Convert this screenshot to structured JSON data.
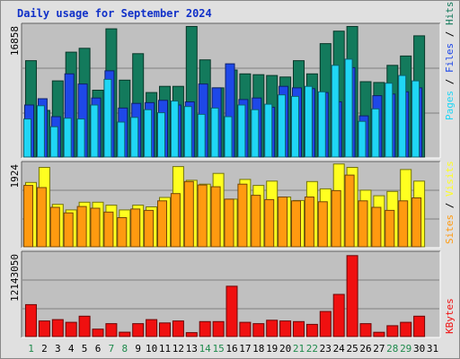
{
  "title": "Daily usage for September 2024",
  "colors": {
    "hits": "#137a5c",
    "files": "#1e48e8",
    "pages": "#20d6f5",
    "visits": "#ffff20",
    "sites": "#ff9a10",
    "kbytes": "#f01010",
    "weekend_label": "#1e8a4c",
    "weekday_label": "#000000"
  },
  "chart_data": [
    {
      "type": "bar",
      "name": "hits-files-pages",
      "categories": [
        "1",
        "2",
        "3",
        "4",
        "5",
        "6",
        "7",
        "8",
        "9",
        "10",
        "11",
        "12",
        "13",
        "14",
        "15",
        "16",
        "17",
        "18",
        "19",
        "20",
        "21",
        "22",
        "23",
        "24",
        "25",
        "26",
        "27",
        "28",
        "29",
        "30",
        "31"
      ],
      "weekend_days": [
        "1",
        "7",
        "8",
        "14",
        "15",
        "21",
        "22",
        "28",
        "29"
      ],
      "ymax_label": "16858",
      "ylim": [
        0,
        16858
      ],
      "series": [
        {
          "name": "Hits",
          "values": [
            12400,
            6000,
            9800,
            13500,
            14000,
            8600,
            16500,
            9900,
            13300,
            8300,
            9100,
            9100,
            16800,
            12500,
            8900,
            11200,
            10700,
            10600,
            10500,
            10300,
            12400,
            10700,
            14600,
            16200,
            16800,
            9700,
            9600,
            11800,
            13000,
            15600,
            0
          ]
        },
        {
          "name": "Files",
          "values": [
            6700,
            7500,
            5200,
            10700,
            9400,
            7600,
            11100,
            6300,
            6900,
            7000,
            7300,
            6700,
            7100,
            9400,
            8900,
            12000,
            7400,
            7600,
            6400,
            9100,
            8900,
            8800,
            8300,
            7100,
            11500,
            5300,
            7900,
            8100,
            8400,
            8900,
            0
          ]
        },
        {
          "name": "Pages",
          "values": [
            4900,
            6600,
            3900,
            5000,
            4900,
            6700,
            10000,
            4500,
            5100,
            6100,
            5700,
            7200,
            6500,
            5500,
            6300,
            5200,
            6700,
            6100,
            6800,
            8000,
            7800,
            9100,
            8400,
            11800,
            12600,
            4600,
            6200,
            9500,
            10500,
            9800,
            0
          ]
        }
      ],
      "legend": [
        "Pages",
        "Files",
        "Hits"
      ]
    },
    {
      "type": "bar",
      "name": "visits-sites",
      "categories": [
        "1",
        "2",
        "3",
        "4",
        "5",
        "6",
        "7",
        "8",
        "9",
        "10",
        "11",
        "12",
        "13",
        "14",
        "15",
        "16",
        "17",
        "18",
        "19",
        "20",
        "21",
        "22",
        "23",
        "24",
        "25",
        "26",
        "27",
        "28",
        "29",
        "30",
        "31"
      ],
      "ymax_label": "1924",
      "ylim": [
        0,
        1924
      ],
      "series": [
        {
          "name": "Visits",
          "values": [
            1500,
            1850,
            990,
            860,
            1040,
            1040,
            970,
            860,
            970,
            930,
            1150,
            1870,
            1550,
            1460,
            1710,
            1110,
            1570,
            1430,
            1530,
            1160,
            1080,
            1520,
            1350,
            1930,
            1850,
            1320,
            1190,
            1290,
            1800,
            1530,
            0
          ]
        },
        {
          "name": "Sites",
          "values": [
            1430,
            1380,
            920,
            790,
            940,
            900,
            810,
            680,
            880,
            850,
            1070,
            1240,
            1520,
            1440,
            1400,
            1110,
            1460,
            1200,
            1100,
            1160,
            1070,
            1160,
            1050,
            1310,
            1670,
            1070,
            920,
            850,
            1070,
            1140,
            0
          ]
        }
      ],
      "legend": [
        "Sites",
        "Visits"
      ]
    },
    {
      "type": "bar",
      "name": "kbytes",
      "categories": [
        "1",
        "2",
        "3",
        "4",
        "5",
        "6",
        "7",
        "8",
        "9",
        "10",
        "11",
        "12",
        "13",
        "14",
        "15",
        "16",
        "17",
        "18",
        "19",
        "20",
        "21",
        "22",
        "23",
        "24",
        "25",
        "26",
        "27",
        "28",
        "29",
        "30",
        "31"
      ],
      "ymax_label": "12143050",
      "ylim": [
        0,
        12143050
      ],
      "series": [
        {
          "name": "KBytes",
          "values": [
            4700000,
            2300000,
            2500000,
            2100000,
            3000000,
            1100000,
            1900000,
            650000,
            1900000,
            2500000,
            2000000,
            2300000,
            580000,
            2200000,
            2200000,
            7400000,
            2100000,
            1900000,
            2400000,
            2300000,
            2200000,
            1800000,
            3700000,
            6200000,
            11900000,
            1900000,
            640000,
            1600000,
            2100000,
            3000000,
            0
          ]
        }
      ],
      "legend": [
        "KBytes"
      ]
    }
  ]
}
